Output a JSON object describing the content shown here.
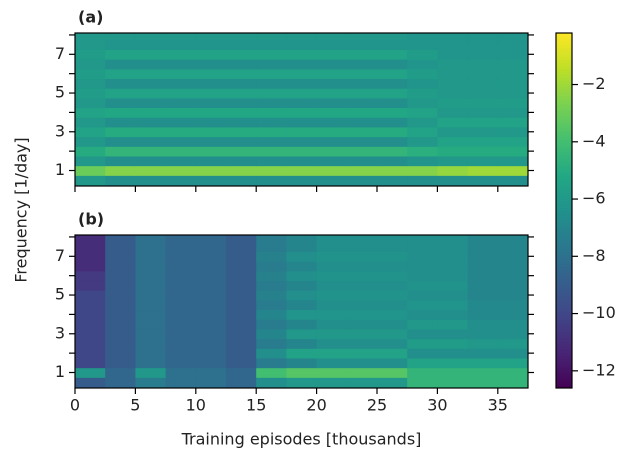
{
  "chart_data": [
    {
      "type": "heatmap",
      "title": "(a)",
      "colormap": "viridis",
      "xbins": [
        0,
        2.5,
        5,
        7.5,
        10,
        12.5,
        15,
        17.5,
        20,
        22.5,
        25,
        27.5,
        30,
        32.5,
        35,
        37.5
      ],
      "ybins": [
        0.25,
        0.75,
        1.25,
        1.75,
        2.25,
        2.75,
        3.25,
        3.75,
        4.25,
        4.75,
        5.25,
        5.75,
        6.25,
        6.75,
        7.25,
        7.75,
        8.25
      ],
      "z": [
        [
          -6,
          -6.5,
          -6.5,
          -6.5,
          -6.5,
          -6.5,
          -6.5,
          -6.5,
          -6.5,
          -6.5,
          -6.5,
          -6.5,
          -6.5,
          -6.5,
          -6.5
        ],
        [
          -3,
          -2.5,
          -2.5,
          -2.5,
          -2.5,
          -2.5,
          -2.5,
          -2.5,
          -2.5,
          -2.5,
          -2.5,
          -2.5,
          -2.2,
          -2,
          -2
        ],
        [
          -6,
          -6.5,
          -6.5,
          -6.5,
          -6.5,
          -6.5,
          -6.5,
          -6.5,
          -6.5,
          -6.5,
          -6.5,
          -6.2,
          -6,
          -6,
          -6
        ],
        [
          -5,
          -4.5,
          -4.5,
          -4.5,
          -4.5,
          -4.5,
          -4.5,
          -4.5,
          -4.5,
          -4.5,
          -4.5,
          -4.8,
          -5,
          -5,
          -5
        ],
        [
          -6,
          -6.5,
          -6.5,
          -6.5,
          -6.5,
          -6.5,
          -6.5,
          -6.5,
          -6.5,
          -6.5,
          -6.5,
          -6,
          -5.5,
          -5.5,
          -5.5
        ],
        [
          -5.5,
          -5,
          -5,
          -5,
          -5,
          -5,
          -5,
          -5,
          -5,
          -5,
          -5,
          -5.5,
          -6,
          -6,
          -6
        ],
        [
          -6,
          -6.5,
          -6.5,
          -6.5,
          -6.5,
          -6.5,
          -6.5,
          -6.5,
          -6.5,
          -6.5,
          -6.5,
          -6,
          -5.5,
          -5.5,
          -5.5
        ],
        [
          -5.5,
          -5.2,
          -5.2,
          -5.2,
          -5.2,
          -5.2,
          -5.2,
          -5.2,
          -5.2,
          -5.2,
          -5.2,
          -5.5,
          -6,
          -6,
          -6
        ],
        [
          -6,
          -6.5,
          -6.5,
          -6.5,
          -6.5,
          -6.5,
          -6.5,
          -6.5,
          -6.5,
          -6.5,
          -6.5,
          -6,
          -5.8,
          -5.8,
          -5.8
        ],
        [
          -5.8,
          -5.5,
          -5.5,
          -5.5,
          -5.5,
          -5.5,
          -5.5,
          -5.5,
          -5.5,
          -5.5,
          -5.5,
          -5.8,
          -6,
          -6,
          -6
        ],
        [
          -6,
          -6.5,
          -6.5,
          -6.5,
          -6.5,
          -6.5,
          -6.5,
          -6.5,
          -6.5,
          -6.5,
          -6.5,
          -6.2,
          -6,
          -6,
          -6
        ],
        [
          -5.8,
          -5.5,
          -5.5,
          -5.5,
          -5.5,
          -5.5,
          -5.5,
          -5.5,
          -5.5,
          -5.5,
          -5.5,
          -5.8,
          -6,
          -6,
          -6
        ],
        [
          -6,
          -6.5,
          -6.5,
          -6.5,
          -6.5,
          -6.5,
          -6.5,
          -6.5,
          -6.5,
          -6.5,
          -6.5,
          -6.2,
          -6,
          -6,
          -6
        ],
        [
          -5.8,
          -5.5,
          -5.5,
          -5.5,
          -5.5,
          -5.5,
          -5.5,
          -5.5,
          -5.5,
          -5.5,
          -5.5,
          -5.8,
          -6.2,
          -6.2,
          -6.2
        ],
        [
          -6,
          -6.2,
          -6.2,
          -6.2,
          -6.2,
          -6.2,
          -6.2,
          -6.2,
          -6.2,
          -6.2,
          -6.2,
          -6.2,
          -6.2,
          -6.2,
          -6.2
        ],
        [
          -6,
          -6,
          -6,
          -6,
          -6,
          -6,
          -6,
          -6,
          -6,
          -6,
          -6,
          -6.2,
          -6.2,
          -6.2,
          -6.2
        ]
      ],
      "xlim": [
        0,
        37.5
      ],
      "xticks": [
        0,
        5,
        10,
        15,
        20,
        25,
        30,
        35
      ],
      "ylim": [
        0.2,
        8.1
      ],
      "yticks": [
        1,
        3,
        5,
        7
      ],
      "yminorticks": [
        2,
        4,
        6,
        8
      ]
    },
    {
      "type": "heatmap",
      "title": "(b)",
      "colormap": "viridis",
      "xlabel": "Training episodes [thousands]",
      "xbins": [
        0,
        2.5,
        5,
        7.5,
        10,
        12.5,
        15,
        17.5,
        20,
        22.5,
        25,
        27.5,
        30,
        32.5,
        35,
        37.5
      ],
      "ybins": [
        0.25,
        0.75,
        1.25,
        1.75,
        2.25,
        2.75,
        3.25,
        3.75,
        4.25,
        4.75,
        5.25,
        5.75,
        6.25,
        6.75,
        7.25,
        7.75,
        8.25
      ],
      "z": [
        [
          -9,
          -8.5,
          -7.5,
          -8,
          -8,
          -8.5,
          -6.5,
          -6,
          -6,
          -6,
          -6,
          -4.5,
          -4.5,
          -4.5,
          -4.5
        ],
        [
          -6,
          -8.5,
          -6,
          -8,
          -8,
          -8.5,
          -4,
          -3.5,
          -3.5,
          -3.5,
          -3.5,
          -4.5,
          -4.5,
          -4.5,
          -4.5
        ],
        [
          -10,
          -9,
          -8,
          -8.5,
          -8.5,
          -9,
          -7.5,
          -7,
          -6.5,
          -6.5,
          -6.5,
          -5.5,
          -5.5,
          -5.5,
          -5.5
        ],
        [
          -10,
          -9,
          -8,
          -8.5,
          -8.5,
          -9,
          -6.5,
          -5.5,
          -5.5,
          -5.5,
          -5.5,
          -6.5,
          -6.5,
          -6.5,
          -6.5
        ],
        [
          -10,
          -9,
          -8,
          -8.5,
          -8.5,
          -9,
          -7.5,
          -7,
          -6.5,
          -6.5,
          -6.5,
          -5.8,
          -5.8,
          -6,
          -6
        ],
        [
          -10,
          -9,
          -8,
          -8.5,
          -8.5,
          -9,
          -7,
          -6,
          -6,
          -6,
          -6,
          -6.5,
          -6.5,
          -6.5,
          -6.5
        ],
        [
          -10,
          -9,
          -8,
          -8.5,
          -8.5,
          -9,
          -7.5,
          -7,
          -6.5,
          -6.5,
          -6.5,
          -6,
          -6,
          -6.5,
          -6.5
        ],
        [
          -10,
          -9,
          -8,
          -8.5,
          -8.5,
          -9,
          -7,
          -6.2,
          -6.2,
          -6.2,
          -6.2,
          -6.5,
          -6.5,
          -6.8,
          -6.8
        ],
        [
          -10,
          -9,
          -8,
          -8.5,
          -8.5,
          -9,
          -7.5,
          -7,
          -6.5,
          -6.5,
          -6.5,
          -6.2,
          -6.2,
          -6.8,
          -6.8
        ],
        [
          -10,
          -9,
          -8,
          -8.5,
          -8.5,
          -9,
          -7.2,
          -6.5,
          -6.3,
          -6.3,
          -6.3,
          -6.5,
          -6.5,
          -7,
          -7
        ],
        [
          -10.5,
          -9,
          -8,
          -8.5,
          -8.5,
          -9,
          -7.5,
          -7,
          -6.5,
          -6.5,
          -6.5,
          -6.3,
          -6.3,
          -7,
          -7
        ],
        [
          -10.5,
          -9,
          -8,
          -8.5,
          -8.5,
          -9,
          -7.2,
          -6.5,
          -6.3,
          -6.3,
          -6.3,
          -6.5,
          -6.5,
          -7,
          -7
        ],
        [
          -11,
          -9,
          -8,
          -8.5,
          -8.5,
          -9,
          -7.5,
          -7,
          -6.5,
          -6.5,
          -6.5,
          -6.5,
          -6.5,
          -7,
          -7
        ],
        [
          -11,
          -9,
          -8,
          -8.5,
          -8.5,
          -9,
          -7.2,
          -6.5,
          -6.3,
          -6.3,
          -6.3,
          -6.5,
          -6.5,
          -7,
          -7
        ],
        [
          -11,
          -9,
          -8,
          -8.5,
          -8.5,
          -9,
          -7.5,
          -7,
          -6.5,
          -6.5,
          -6.5,
          -6.5,
          -6.5,
          -7,
          -7
        ],
        [
          -11,
          -9,
          -8,
          -8.5,
          -8.5,
          -9,
          -7.5,
          -7,
          -6.5,
          -6.5,
          -6.5,
          -6.5,
          -6.5,
          -7,
          -7
        ]
      ],
      "xlim": [
        0,
        37.5
      ],
      "xticks": [
        0,
        5,
        10,
        15,
        20,
        25,
        30,
        35
      ],
      "ylim": [
        0.2,
        8.1
      ],
      "yticks": [
        1,
        3,
        5,
        7
      ],
      "yminorticks": [
        2,
        4,
        6,
        8
      ]
    }
  ],
  "ylabel": "Frequency [1/day]",
  "colorbar": {
    "colormap": "viridis",
    "zlim": [
      -12.6,
      -0.2
    ],
    "ticks": [
      {
        "value": -2,
        "label": "−2"
      },
      {
        "value": -4,
        "label": "−4"
      },
      {
        "value": -6,
        "label": "−6"
      },
      {
        "value": -8,
        "label": "−8"
      },
      {
        "value": -10,
        "label": "−10"
      },
      {
        "value": -12,
        "label": "−12"
      }
    ]
  }
}
